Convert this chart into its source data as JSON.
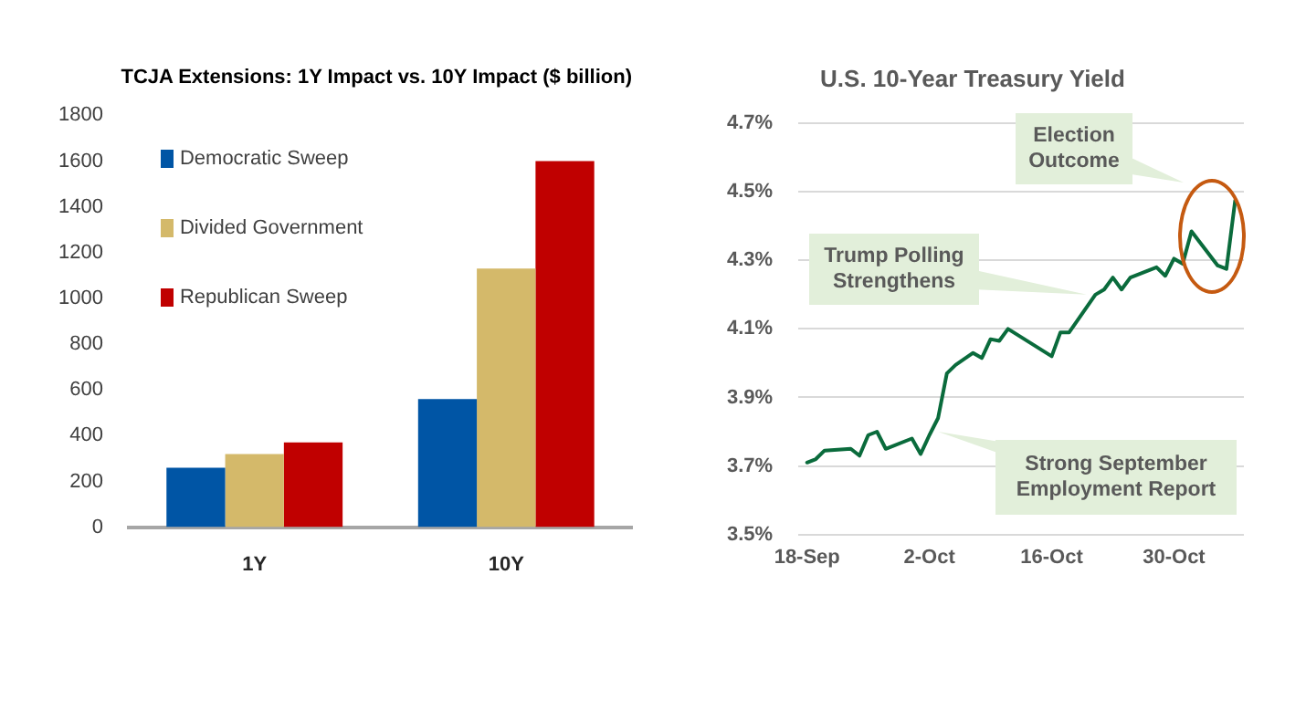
{
  "chart_data": [
    {
      "type": "bar",
      "title": "TCJA Extensions: 1Y Impact vs. 10Y Impact ($ billion)",
      "categories": [
        "1Y",
        "10Y"
      ],
      "series": [
        {
          "name": "Democratic Sweep",
          "color": "#0055a5",
          "values": [
            260,
            560
          ]
        },
        {
          "name": "Divided Government",
          "color": "#d4b96a",
          "values": [
            320,
            1130
          ]
        },
        {
          "name": "Republican Sweep",
          "color": "#c00000",
          "values": [
            370,
            1600
          ]
        }
      ],
      "ylim": [
        0,
        1800
      ],
      "yticks": [
        0,
        200,
        400,
        600,
        800,
        1000,
        1200,
        1400,
        1600,
        1800
      ],
      "grid": false,
      "legend": "top left"
    },
    {
      "type": "line",
      "title": "U.S. 10-Year Treasury Yield",
      "x": [
        "--09-18",
        "--09-19",
        "--09-20",
        "--09-23",
        "--09-24",
        "--09-25",
        "--09-26",
        "--09-27",
        "--09-30",
        "--10-01",
        "--10-02",
        "--10-03",
        "--10-04",
        "--10-05",
        "--10-07",
        "--10-08",
        "--10-09",
        "--10-10",
        "--10-11",
        "--10-16",
        "--10-17",
        "--10-18",
        "--10-21",
        "--10-22",
        "--10-23",
        "--10-24",
        "--10-25",
        "--10-28",
        "--10-29",
        "--10-30",
        "--10-31",
        "--11-01",
        "--11-04",
        "--11-05",
        "--11-06"
      ],
      "series": [
        {
          "color": "#0a6b3c",
          "values": [
            3.71,
            3.72,
            3.745,
            3.75,
            3.73,
            3.79,
            3.8,
            3.75,
            3.78,
            3.735,
            3.79,
            3.84,
            3.97,
            3.995,
            4.03,
            4.015,
            4.07,
            4.065,
            4.1,
            4.02,
            4.09,
            4.09,
            4.2,
            4.215,
            4.25,
            4.215,
            4.25,
            4.28,
            4.255,
            4.305,
            4.29,
            4.385,
            4.285,
            4.275,
            4.475
          ]
        }
      ],
      "xlim": [
        "--09-17",
        "--11-07"
      ],
      "xticks": [
        {
          "value": "--09-18",
          "label": "18-Sep"
        },
        {
          "value": "--10-02",
          "label": "2-Oct"
        },
        {
          "value": "--10-16",
          "label": "16-Oct"
        },
        {
          "value": "--10-30",
          "label": "30-Oct"
        }
      ],
      "ylim": [
        3.5,
        4.7
      ],
      "yticks": [
        {
          "value": 3.5,
          "label": "3.5%"
        },
        {
          "value": 3.7,
          "label": "3.7%"
        },
        {
          "value": 3.9,
          "label": "3.9%"
        },
        {
          "value": 4.1,
          "label": "4.1%"
        },
        {
          "value": 4.3,
          "label": "4.3%"
        },
        {
          "value": 4.5,
          "label": "4.5%"
        },
        {
          "value": 4.7,
          "label": "4.7%"
        }
      ],
      "grid": "y",
      "annotations": [
        "Election Outcome",
        {
          "text": "Trump Polling Strengthens",
          "x": "--10-20",
          "y": 4.2
        },
        {
          "text": "Strong September Employment Report",
          "x": "--10-03",
          "y": 3.8
        }
      ]
    }
  ]
}
